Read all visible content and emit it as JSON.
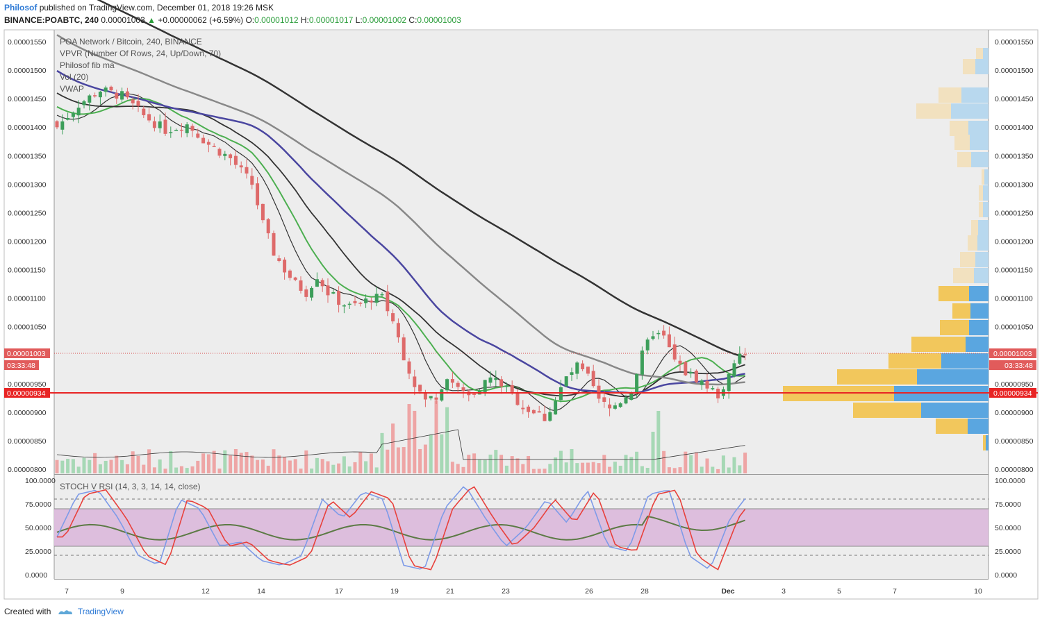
{
  "header": {
    "author": "Philosof",
    "published": "published on TradingView.com, December 01, 2018 19:26 MSK",
    "symbol": "BINANCE:POABTC, 240",
    "last": "0.00001003",
    "change": "+0.00000062 (+6.59%)",
    "o_label": "O:",
    "o": "0.00001012",
    "h_label": "H:",
    "h": "0.00001017",
    "l_label": "L:",
    "l": "0.00001002",
    "c_label": "C:",
    "c": "0.00001003"
  },
  "legend": {
    "title": "POA Network / Bitcoin, 240, BINANCE",
    "vpvr": "VPVR (Number Of Rows, 24, Up/Down, 70)",
    "fibma": "Philosof fib ma",
    "vol": "Vol (20)",
    "vwap": "VWAP"
  },
  "badges": {
    "last_price": "0.00001003",
    "countdown": "03:33:48",
    "level": "0.00000934"
  },
  "stoch": {
    "title": "STOCH V RSI (14, 3, 3, 14, 14, close)",
    "ticks": [
      "100.0000",
      "75.0000",
      "50.0000",
      "25.0000",
      "0.0000"
    ]
  },
  "footer": {
    "created": "Created with",
    "brand": "TradingView"
  },
  "colors": {
    "background": "#ededed",
    "up": "#3c9e5a",
    "down": "#de6a6a",
    "level_line": "#e82424",
    "ma_blue": "#4a46a0",
    "ma_green": "#4caf50",
    "stoch_k": "#7e9be8",
    "stoch_d": "#e8413c",
    "stoch_rsi": "#5c7a45",
    "band": "#dcbcdc",
    "vp_up": "#f2c75c",
    "vp_down": "#5aa6e0"
  },
  "chart_data": {
    "type": "candlestick",
    "price_axis": {
      "ticks": [
        "0.00001550",
        "0.00001500",
        "0.00001450",
        "0.00001400",
        "0.00001350",
        "0.00001300",
        "0.00001250",
        "0.00001200",
        "0.00001150",
        "0.00001100",
        "0.00001050",
        "0.00000950",
        "0.00000900",
        "0.00000850",
        "0.00000800"
      ],
      "range": [
        8e-06,
        1.56e-05
      ]
    },
    "time_axis": [
      "7",
      "9",
      "12",
      "14",
      "17",
      "19",
      "21",
      "23",
      "26",
      "28",
      "Dec",
      "3",
      "5",
      "7",
      "10"
    ],
    "close_path": [
      [
        0,
        1400
      ],
      [
        4,
        1440
      ],
      [
        8,
        1465
      ],
      [
        12,
        1455
      ],
      [
        16,
        1420
      ],
      [
        20,
        1395
      ],
      [
        24,
        1405
      ],
      [
        28,
        1370
      ],
      [
        32,
        1345
      ],
      [
        36,
        1300
      ],
      [
        38,
        1230
      ],
      [
        40,
        1180
      ],
      [
        42,
        1150
      ],
      [
        44,
        1125
      ],
      [
        46,
        1110
      ],
      [
        48,
        1140
      ],
      [
        50,
        1110
      ],
      [
        52,
        1095
      ],
      [
        54,
        1085
      ],
      [
        56,
        1090
      ],
      [
        58,
        1100
      ],
      [
        60,
        1100
      ],
      [
        62,
        1060
      ],
      [
        64,
        1000
      ],
      [
        66,
        950
      ],
      [
        68,
        920
      ],
      [
        70,
        930
      ],
      [
        72,
        965
      ],
      [
        74,
        940
      ],
      [
        76,
        930
      ],
      [
        78,
        945
      ],
      [
        80,
        960
      ],
      [
        82,
        950
      ],
      [
        84,
        930
      ],
      [
        86,
        910
      ],
      [
        88,
        900
      ],
      [
        90,
        890
      ],
      [
        92,
        920
      ],
      [
        94,
        960
      ],
      [
        96,
        980
      ],
      [
        98,
        960
      ],
      [
        100,
        920
      ],
      [
        102,
        905
      ],
      [
        104,
        920
      ],
      [
        106,
        940
      ],
      [
        108,
        1000
      ],
      [
        110,
        1040
      ],
      [
        112,
        1030
      ],
      [
        114,
        990
      ],
      [
        116,
        970
      ],
      [
        118,
        960
      ],
      [
        120,
        945
      ],
      [
        122,
        930
      ],
      [
        124,
        960
      ],
      [
        126,
        1000
      ],
      [
        128,
        1003
      ]
    ],
    "volume_bars_count": 128,
    "moving_averages": [
      {
        "color": "#333333",
        "name": ""
      },
      {
        "color": "#4caf50",
        "name": ""
      },
      {
        "color": "#4a46a0",
        "name": ""
      },
      {
        "color": "#888888",
        "name": ""
      }
    ],
    "stoch_series": [
      "k",
      "d",
      "rsi"
    ],
    "band": [
      30,
      70
    ],
    "dashed_levels": [
      20,
      80
    ]
  }
}
